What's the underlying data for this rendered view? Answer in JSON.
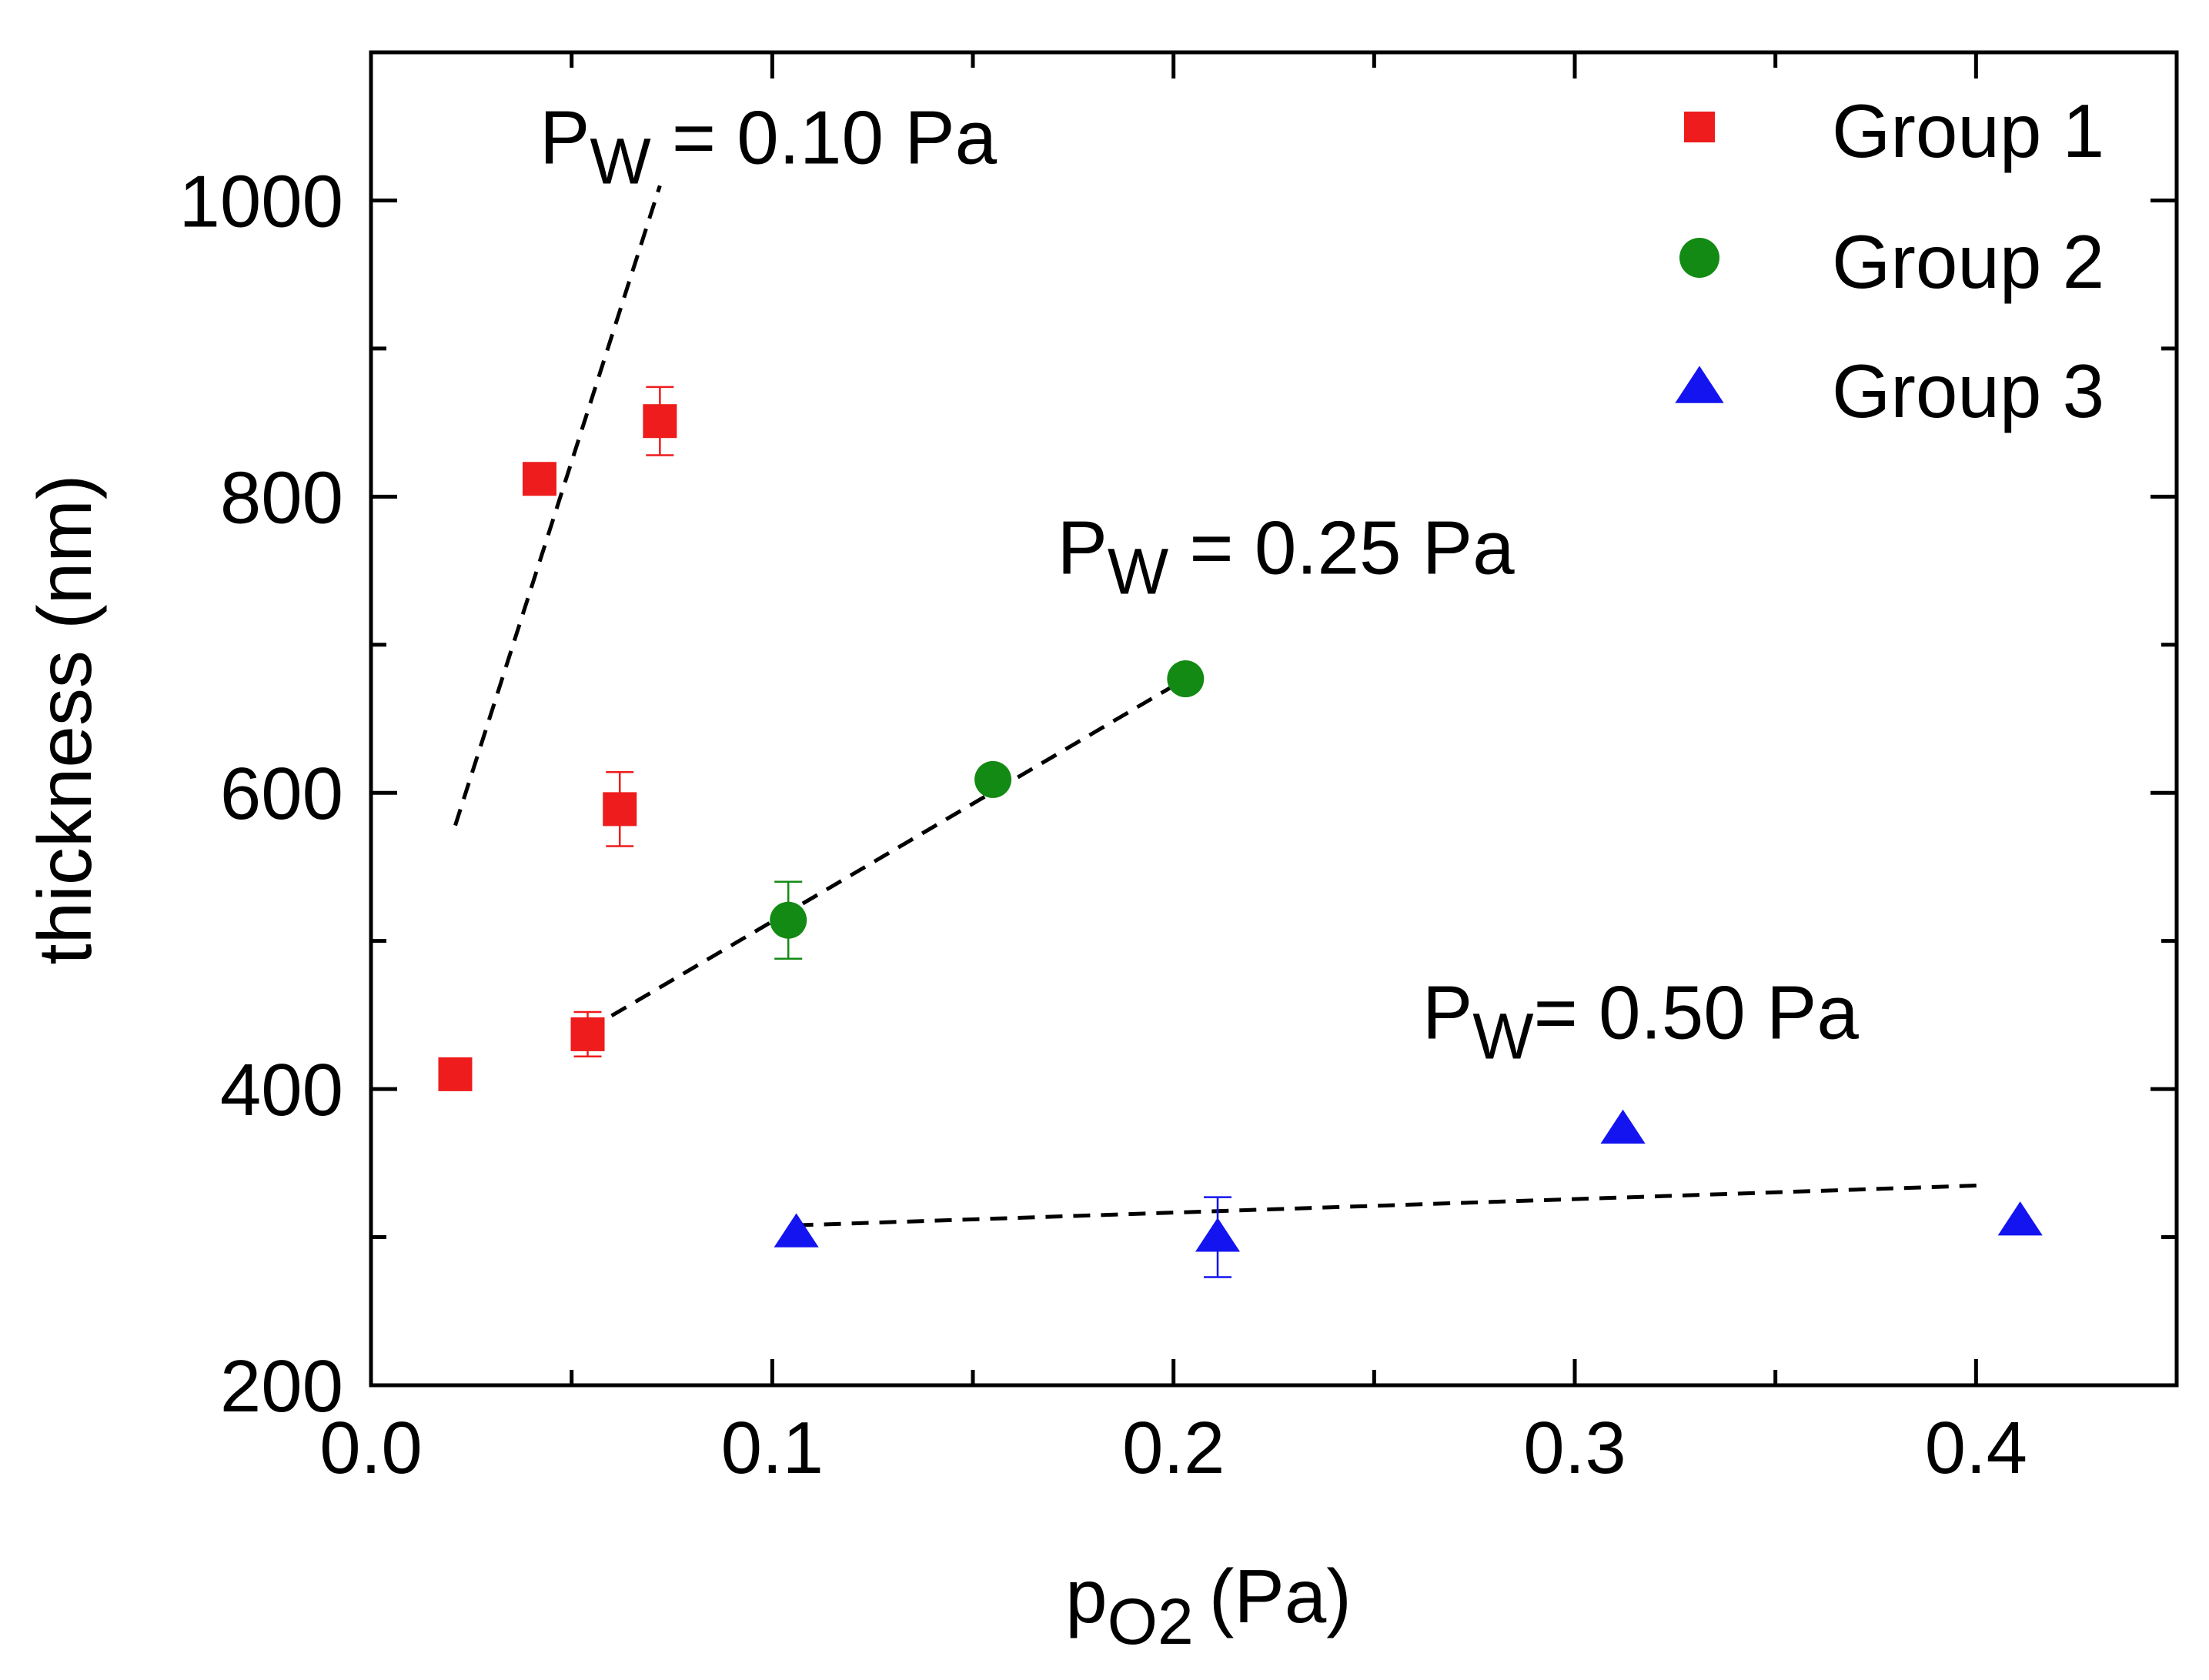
{
  "chart_data": {
    "type": "scatter",
    "title": "",
    "xlabel": {
      "main": "p",
      "sub": "O2",
      "unit": "(Pa)"
    },
    "ylabel": "thickness (nm)",
    "xlim": [
      0.0,
      0.45
    ],
    "ylim": [
      200,
      1100
    ],
    "x_major_ticks": [
      0.0,
      0.1,
      0.2,
      0.3,
      0.4
    ],
    "x_tick_labels": [
      "0.0",
      "0.1",
      "0.2",
      "0.3",
      "0.4"
    ],
    "x_minor_ticks": [
      0.05,
      0.15,
      0.25,
      0.35
    ],
    "y_major_ticks": [
      200,
      400,
      600,
      800,
      1000
    ],
    "y_tick_labels": [
      "200",
      "400",
      "600",
      "800",
      "1000"
    ],
    "y_minor_ticks": [
      300,
      500,
      700,
      900
    ],
    "grid": false,
    "legend_position": "top-right",
    "series": [
      {
        "name": "Group 1",
        "marker": "square",
        "color": "#ee1c1c",
        "points": [
          {
            "x": 0.021,
            "y": 410,
            "err": 0
          },
          {
            "x": 0.054,
            "y": 437,
            "err": 15
          },
          {
            "x": 0.042,
            "y": 812,
            "err": 0
          },
          {
            "x": 0.062,
            "y": 589,
            "err": 25
          },
          {
            "x": 0.072,
            "y": 851,
            "err": 23
          }
        ]
      },
      {
        "name": "Group 2",
        "marker": "circle",
        "color": "#138a13",
        "points": [
          {
            "x": 0.104,
            "y": 514,
            "err": 26
          },
          {
            "x": 0.155,
            "y": 609,
            "err": 0
          },
          {
            "x": 0.203,
            "y": 677,
            "err": 0
          }
        ]
      },
      {
        "name": "Group 3",
        "marker": "triangle",
        "color": "#1414f0",
        "points": [
          {
            "x": 0.106,
            "y": 303,
            "err": 0
          },
          {
            "x": 0.211,
            "y": 300,
            "err": 27
          },
          {
            "x": 0.312,
            "y": 373,
            "err": 0
          },
          {
            "x": 0.411,
            "y": 311,
            "err": 0
          }
        ]
      }
    ],
    "fit_lines": [
      {
        "name": "fit-group-1",
        "x": [
          0.021,
          0.072
        ],
        "y": [
          578,
          1010
        ]
      },
      {
        "name": "fit-group-2",
        "x": [
          0.054,
          0.203
        ],
        "y": [
          440,
          677
        ]
      },
      {
        "name": "fit-group-3",
        "x": [
          0.106,
          0.402
        ],
        "y": [
          308,
          335
        ]
      }
    ],
    "annotations": [
      {
        "name": "pw-010-label",
        "main": "P",
        "sub": "W",
        "rest": " = 0.10 Pa",
        "x": 0.042,
        "y": 1025
      },
      {
        "name": "pw-025-label",
        "main": "P",
        "sub": "W",
        "rest": " = 0.25 Pa",
        "x": 0.171,
        "y": 748
      },
      {
        "name": "pw-050-label",
        "main": "P",
        "sub": "W",
        "rest": "= 0.50 Pa",
        "x": 0.262,
        "y": 434
      }
    ]
  }
}
